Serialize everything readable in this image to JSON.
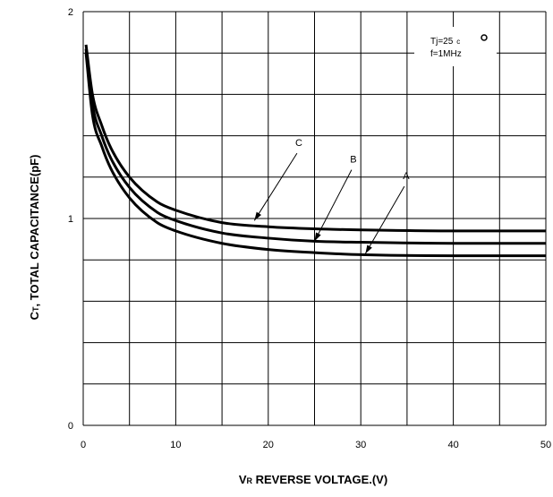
{
  "chart_data": {
    "type": "line",
    "xlabel_main": "V",
    "xlabel_sub": "R",
    "xlabel_rest": " REVERSE VOLTAGE.(V)",
    "ylabel_main": "C",
    "ylabel_sub": "T",
    "ylabel_rest": ", TOTAL CAPACITANCE(pF)",
    "xlim": [
      0,
      50
    ],
    "ylim": [
      0,
      2
    ],
    "x_ticks": [
      0,
      10,
      20,
      30,
      40,
      50
    ],
    "x_tick_labels": [
      "0",
      "10",
      "20",
      "30",
      "40",
      "50"
    ],
    "y_ticks": [
      0,
      1,
      2
    ],
    "y_tick_labels": [
      "0",
      "1",
      "2"
    ],
    "grid": true,
    "conditions": {
      "tj_text": "Tj=25",
      "tj_unit": "c",
      "freq_text": "f=1MHz"
    },
    "series": [
      {
        "name": "A",
        "x": [
          0.3,
          1,
          2,
          3,
          5,
          8,
          10,
          15,
          20,
          25,
          30,
          40,
          50
        ],
        "y": [
          1.8,
          1.5,
          1.35,
          1.24,
          1.1,
          0.98,
          0.94,
          0.88,
          0.85,
          0.835,
          0.825,
          0.82,
          0.82
        ],
        "label_at": [
          34.9,
          1.19
        ],
        "arrow_to": [
          30.5,
          0.83
        ]
      },
      {
        "name": "B",
        "x": [
          0.3,
          1,
          2,
          3,
          5,
          8,
          10,
          15,
          20,
          25,
          30,
          40,
          50
        ],
        "y": [
          1.82,
          1.55,
          1.4,
          1.29,
          1.15,
          1.03,
          0.99,
          0.93,
          0.905,
          0.89,
          0.885,
          0.88,
          0.88
        ],
        "label_at": [
          29.2,
          1.27
        ],
        "arrow_to": [
          25.0,
          0.89
        ]
      },
      {
        "name": "C",
        "x": [
          0.3,
          1,
          2,
          3,
          5,
          8,
          10,
          15,
          20,
          25,
          30,
          40,
          50
        ],
        "y": [
          1.84,
          1.6,
          1.45,
          1.34,
          1.2,
          1.08,
          1.04,
          0.98,
          0.96,
          0.95,
          0.945,
          0.94,
          0.94
        ],
        "label_at": [
          23.3,
          1.35
        ],
        "arrow_to": [
          18.5,
          0.99
        ]
      }
    ]
  }
}
